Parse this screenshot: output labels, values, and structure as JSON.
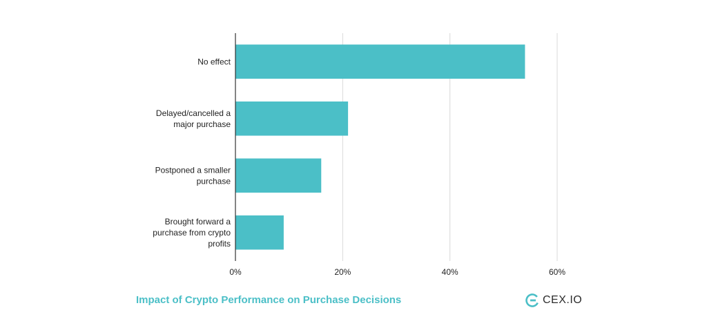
{
  "chart_data": {
    "type": "bar",
    "orientation": "horizontal",
    "categories": [
      "No effect",
      "Delayed/cancelled a major purchase",
      "Postponed a smaller purchase",
      "Brought forward a purchase from crypto profits"
    ],
    "category_lines": [
      [
        "No effect"
      ],
      [
        "Delayed/cancelled a",
        "major purchase"
      ],
      [
        "Postponed a smaller",
        "purchase"
      ],
      [
        "Brought forward a",
        "purchase from crypto",
        "profits"
      ]
    ],
    "values": [
      54,
      21,
      16,
      9
    ],
    "unit": "%",
    "xlim": [
      0,
      60
    ],
    "xticks": [
      0,
      20,
      40,
      60
    ],
    "xtick_labels": [
      "0%",
      "20%",
      "40%",
      "60%"
    ],
    "grid": true,
    "bar_color": "#4bbfc7",
    "grid_color": "#d9d9d9"
  },
  "footer": {
    "title": "Impact of Crypto Performance on Purchase Decisions",
    "title_color": "#4bbfc7",
    "brand_logo_text": "CEX.IO",
    "brand_icon": "cex-io-logo-icon"
  }
}
